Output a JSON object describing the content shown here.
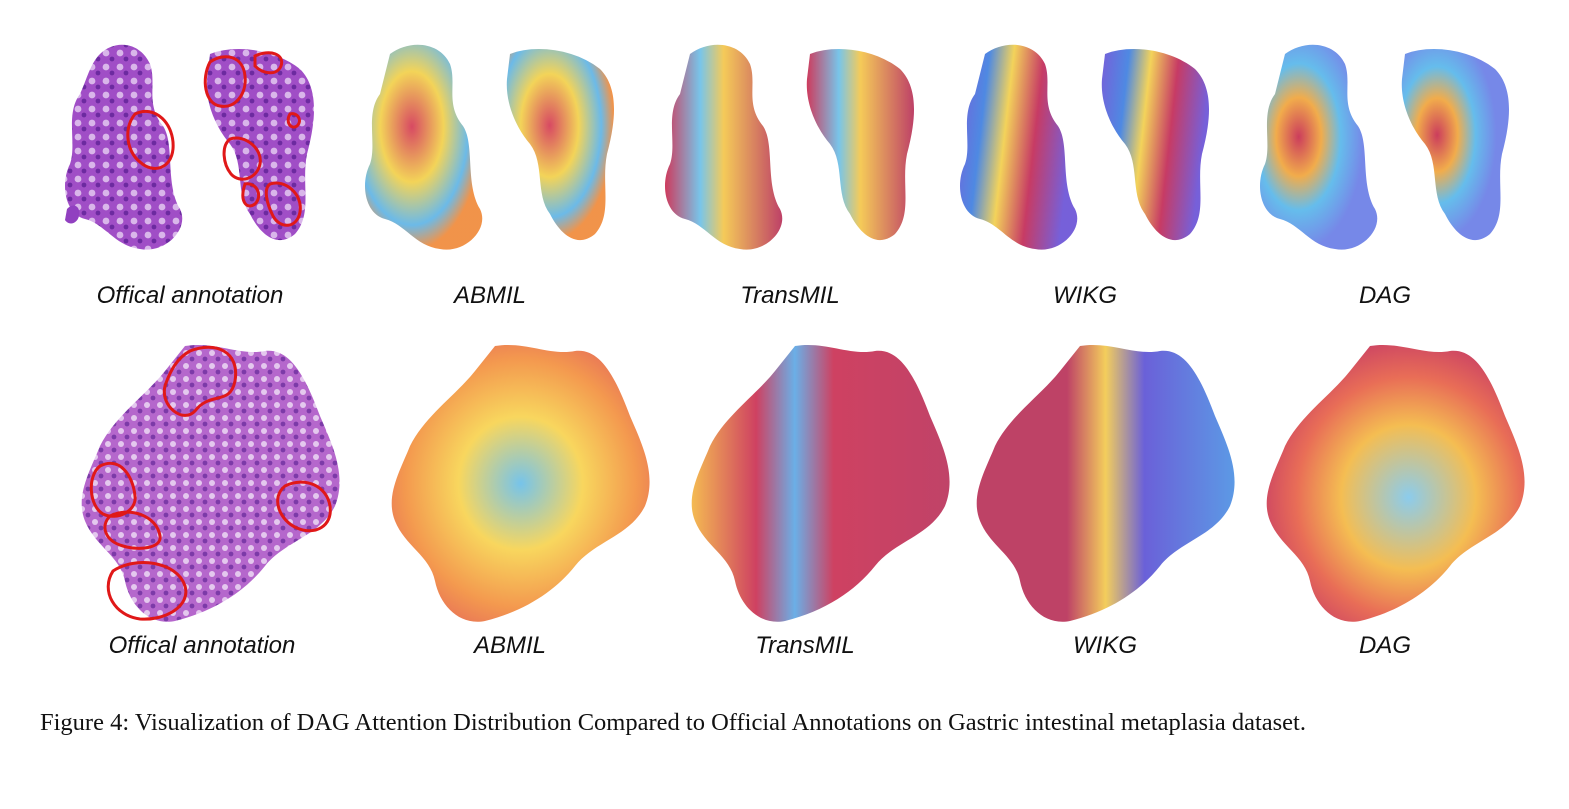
{
  "figure": {
    "rows": [
      {
        "panels": [
          {
            "label": "Offical annotation",
            "kind": "annotation"
          },
          {
            "label": "ABMIL",
            "kind": "heatmap",
            "palette": [
              "#f2d04a",
              "#d43a55",
              "#5fb4e6",
              "#f08a3a"
            ]
          },
          {
            "label": "TransMIL",
            "kind": "heatmap",
            "palette": [
              "#c92a4f",
              "#f4c64a",
              "#6cc0e8",
              "#b8305a"
            ]
          },
          {
            "label": "WIKG",
            "kind": "heatmap",
            "palette": [
              "#6a52d6",
              "#3f7fe0",
              "#f2cf4c",
              "#c22a57"
            ]
          },
          {
            "label": "DAG",
            "kind": "heatmap",
            "palette": [
              "#6a7ee6",
              "#c72c4e",
              "#f0a53c",
              "#58b7ea"
            ]
          }
        ]
      },
      {
        "panels": [
          {
            "label": "Offical annotation",
            "kind": "annotation"
          },
          {
            "label": "ABMIL",
            "kind": "heatmap",
            "palette": [
              "#f7d24c",
              "#e25a47",
              "#67bde8",
              "#f28d3b"
            ]
          },
          {
            "label": "TransMIL",
            "kind": "heatmap",
            "palette": [
              "#c92c50",
              "#f3b33f",
              "#5aa6e4",
              "#b92e57"
            ]
          },
          {
            "label": "WIKG",
            "kind": "heatmap",
            "palette": [
              "#b72d55",
              "#f2c84a",
              "#5a4fd4",
              "#4a8ee2"
            ]
          },
          {
            "label": "DAG",
            "kind": "heatmap",
            "palette": [
              "#c62f52",
              "#f3b63f",
              "#7fc6ea",
              "#e65d44"
            ]
          }
        ]
      }
    ],
    "tissue_color": "#9b4fc0",
    "annotation_color": "#e01818"
  },
  "caption": "Figure 4: Visualization of DAG Attention Distribution Compared to Official Annotations on Gastric intestinal metaplasia dataset."
}
